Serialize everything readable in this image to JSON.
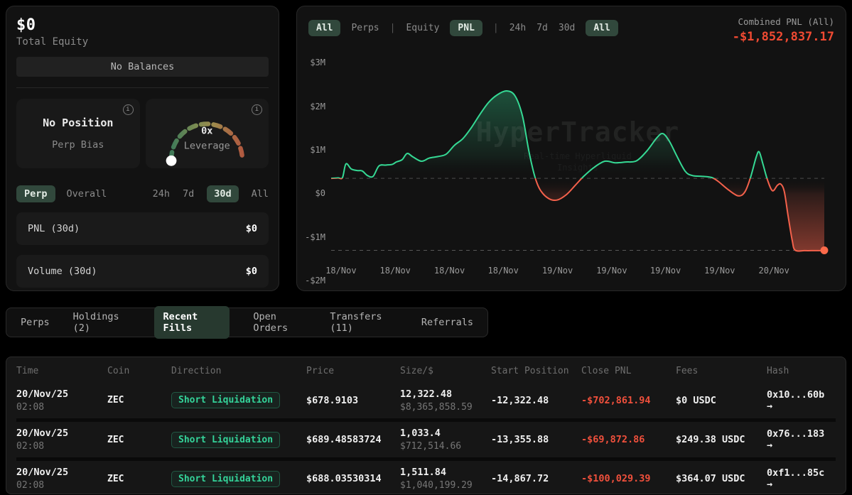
{
  "icons": {
    "info": "i",
    "hash_arrow": "→",
    "separator": "|"
  },
  "left_panel": {
    "total_equity_value": "$0",
    "total_equity_label": "Total Equity",
    "no_balances_label": "No Balances",
    "position_card": {
      "title": "No Position",
      "subtitle": "Perp Bias"
    },
    "leverage_card": {
      "value": "0x",
      "label": "Leverage"
    },
    "scope_tabs": [
      {
        "label": "Perp",
        "active": true
      },
      {
        "label": "Overall",
        "active": false
      }
    ],
    "period_tabs": [
      {
        "label": "24h",
        "active": false
      },
      {
        "label": "7d",
        "active": false
      },
      {
        "label": "30d",
        "active": true
      },
      {
        "label": "All",
        "active": false
      }
    ],
    "stats": [
      {
        "label": "PNL (30d)",
        "value": "$0"
      },
      {
        "label": "Volume (30d)",
        "value": "$0"
      }
    ]
  },
  "chart_panel": {
    "filter_groups": [
      [
        {
          "label": "All",
          "active": true
        },
        {
          "label": "Perps",
          "active": false
        }
      ],
      [
        {
          "label": "Equity",
          "active": false
        },
        {
          "label": "PNL",
          "active": true
        }
      ],
      [
        {
          "label": "24h",
          "active": false
        },
        {
          "label": "7d",
          "active": false
        },
        {
          "label": "30d",
          "active": false
        },
        {
          "label": "All",
          "active": true
        }
      ]
    ],
    "combined_pnl_label": "Combined PNL (All)",
    "combined_pnl_value": "-$1,852,837.17",
    "watermark_title": "HyperTracker",
    "watermark_subtitle": "Real-time Hyperliquid Insights"
  },
  "chart_data": {
    "type": "area",
    "series_name": "Combined PNL (All)",
    "unit": "millions USD",
    "ylim": [
      -2.1,
      3.2
    ],
    "grid": "dashed zero line and dashed current-value line",
    "legend_position": "none",
    "current_value": -1.853,
    "current_value_label": "-$1,852,837.17",
    "colors": {
      "positive": "#35d994",
      "negative": "#f4614b",
      "end_dot": "#fb6a4a"
    },
    "yticks": [
      {
        "label": "$3M",
        "value": 3
      },
      {
        "label": "$2M",
        "value": 2
      },
      {
        "label": "$1M",
        "value": 1
      },
      {
        "label": "$0",
        "value": 0
      },
      {
        "label": "-$1M",
        "value": -1
      },
      {
        "label": "-$2M",
        "value": -2
      }
    ],
    "xticks": [
      {
        "label": "18/Nov",
        "f": 0.02
      },
      {
        "label": "18/Nov",
        "f": 0.13
      },
      {
        "label": "18/Nov",
        "f": 0.24
      },
      {
        "label": "18/Nov",
        "f": 0.349
      },
      {
        "label": "19/Nov",
        "f": 0.459
      },
      {
        "label": "19/Nov",
        "f": 0.569
      },
      {
        "label": "19/Nov",
        "f": 0.678
      },
      {
        "label": "19/Nov",
        "f": 0.788
      },
      {
        "label": "20/Nov",
        "f": 0.898
      }
    ],
    "points": [
      [
        0.0,
        0.0
      ],
      [
        0.014,
        0.01
      ],
      [
        0.023,
        0.02
      ],
      [
        0.03,
        0.37
      ],
      [
        0.041,
        0.24
      ],
      [
        0.053,
        0.2
      ],
      [
        0.063,
        0.19
      ],
      [
        0.074,
        0.07
      ],
      [
        0.085,
        0.05
      ],
      [
        0.097,
        0.32
      ],
      [
        0.111,
        0.34
      ],
      [
        0.124,
        0.36
      ],
      [
        0.132,
        0.42
      ],
      [
        0.144,
        0.48
      ],
      [
        0.154,
        0.64
      ],
      [
        0.166,
        0.55
      ],
      [
        0.183,
        0.44
      ],
      [
        0.199,
        0.52
      ],
      [
        0.216,
        0.56
      ],
      [
        0.233,
        0.62
      ],
      [
        0.25,
        0.85
      ],
      [
        0.267,
        1.02
      ],
      [
        0.284,
        1.3
      ],
      [
        0.302,
        1.65
      ],
      [
        0.319,
        1.95
      ],
      [
        0.337,
        2.15
      ],
      [
        0.356,
        2.25
      ],
      [
        0.373,
        2.12
      ],
      [
        0.388,
        1.6
      ],
      [
        0.401,
        0.7
      ],
      [
        0.413,
        0.05
      ],
      [
        0.424,
        -0.3
      ],
      [
        0.441,
        -0.52
      ],
      [
        0.458,
        -0.56
      ],
      [
        0.477,
        -0.42
      ],
      [
        0.495,
        -0.18
      ],
      [
        0.512,
        0.05
      ],
      [
        0.533,
        0.28
      ],
      [
        0.555,
        0.44
      ],
      [
        0.576,
        0.4
      ],
      [
        0.597,
        0.42
      ],
      [
        0.619,
        0.45
      ],
      [
        0.64,
        0.7
      ],
      [
        0.661,
        1.05
      ],
      [
        0.673,
        1.15
      ],
      [
        0.686,
        0.95
      ],
      [
        0.7,
        0.6
      ],
      [
        0.718,
        0.18
      ],
      [
        0.733,
        0.07
      ],
      [
        0.754,
        0.05
      ],
      [
        0.772,
        0.02
      ],
      [
        0.785,
        -0.08
      ],
      [
        0.804,
        -0.28
      ],
      [
        0.825,
        -0.45
      ],
      [
        0.839,
        -0.35
      ],
      [
        0.851,
        0.05
      ],
      [
        0.862,
        0.55
      ],
      [
        0.868,
        0.68
      ],
      [
        0.876,
        0.35
      ],
      [
        0.885,
        -0.05
      ],
      [
        0.895,
        -0.32
      ],
      [
        0.905,
        -0.18
      ],
      [
        0.912,
        -0.15
      ],
      [
        0.919,
        -0.35
      ],
      [
        0.927,
        -1.0
      ],
      [
        0.935,
        -1.6
      ],
      [
        0.941,
        -1.85
      ],
      [
        0.96,
        -1.86
      ],
      [
        0.981,
        -1.86
      ],
      [
        1.0,
        -1.86
      ]
    ]
  },
  "section_tabs": [
    {
      "label": "Perps",
      "active": false
    },
    {
      "label": "Holdings (2)",
      "active": false
    },
    {
      "label": "Recent Fills",
      "active": true
    },
    {
      "label": "Open Orders",
      "active": false
    },
    {
      "label": "Transfers (11)",
      "active": false
    },
    {
      "label": "Referrals",
      "active": false
    }
  ],
  "table": {
    "columns": [
      "Time",
      "Coin",
      "Direction",
      "Price",
      "Size/$",
      "Start Position",
      "Close PNL",
      "Fees",
      "Hash"
    ],
    "rows": [
      {
        "date": "20/Nov/25",
        "time": "02:08",
        "coin": "ZEC",
        "direction": "Short Liquidation",
        "price": "$678.9103",
        "size": "12,322.48",
        "size_usd": "$8,365,858.59",
        "start_position": "-12,322.48",
        "close_pnl": "-$702,861.94",
        "fees": "$0 USDC",
        "hash": "0x10...60b"
      },
      {
        "date": "20/Nov/25",
        "time": "02:08",
        "coin": "ZEC",
        "direction": "Short Liquidation",
        "price": "$689.48583724",
        "size": "1,033.4",
        "size_usd": "$712,514.66",
        "start_position": "-13,355.88",
        "close_pnl": "-$69,872.86",
        "fees": "$249.38 USDC",
        "hash": "0x76...183"
      },
      {
        "date": "20/Nov/25",
        "time": "02:08",
        "coin": "ZEC",
        "direction": "Short Liquidation",
        "price": "$688.03530314",
        "size": "1,511.84",
        "size_usd": "$1,040,199.29",
        "start_position": "-14,867.72",
        "close_pnl": "-$100,029.39",
        "fees": "$364.07 USDC",
        "hash": "0xf1...85c"
      }
    ]
  }
}
